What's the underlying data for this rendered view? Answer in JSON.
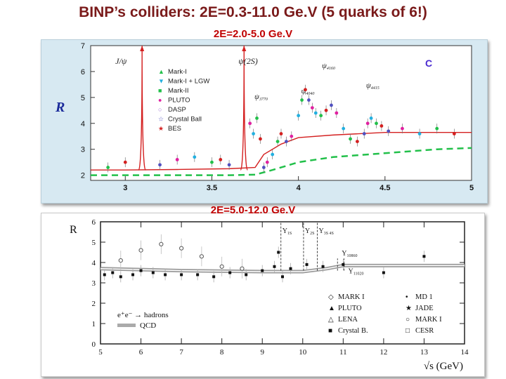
{
  "slide": {
    "title": "BINP’s colliders:  2E=0.3-11.0 Ge.V  (5 quarks of 6!)",
    "subtitle_top": "2E=2.0-5.0 Ge.V",
    "subtitle_bottom": "2E=5.0-12.0 Ge.V"
  },
  "chart_data": [
    {
      "type": "scatter",
      "ylabel": "R",
      "xlim": [
        2.8,
        5.0
      ],
      "ylim": [
        1.8,
        7.0
      ],
      "xticks": [
        3,
        3.5,
        4,
        4.5,
        5
      ],
      "yticks": [
        2,
        3,
        4,
        5,
        6,
        7
      ],
      "corner_label": "C",
      "legend_position": "top-left",
      "legend": [
        "Mark-I",
        "Mark-I + LGW",
        "Mark-II",
        "PLUTO",
        "DASP",
        "Crystal Ball",
        "BES"
      ],
      "annotations": [
        {
          "text": "J/ψ",
          "x": 3.097
        },
        {
          "text": "ψ(2S)",
          "x": 3.686
        },
        {
          "text": "ψ",
          "sub": "3770",
          "x": 3.77
        },
        {
          "text": "ψ",
          "sub": "4040",
          "x": 4.04
        },
        {
          "text": "ψ",
          "sub": "4160",
          "x": 4.16
        },
        {
          "text": "ψ",
          "sub": "4415",
          "x": 4.415
        }
      ],
      "peaks": [
        {
          "x": 3.097,
          "y": 7.0
        },
        {
          "x": 3.686,
          "y": 7.0
        }
      ],
      "continuum_red": [
        [
          2.8,
          2.2
        ],
        [
          3.0,
          2.2
        ],
        [
          3.3,
          2.22
        ],
        [
          3.6,
          2.25
        ],
        [
          3.75,
          2.3
        ],
        [
          3.8,
          2.8
        ],
        [
          3.9,
          3.2
        ],
        [
          4.0,
          3.45
        ],
        [
          4.2,
          3.55
        ],
        [
          4.5,
          3.65
        ],
        [
          5.0,
          3.65
        ]
      ],
      "qcd_green": [
        [
          2.8,
          2.0
        ],
        [
          3.6,
          2.0
        ],
        [
          3.75,
          2.02
        ],
        [
          3.85,
          2.2
        ],
        [
          4.0,
          2.5
        ],
        [
          4.2,
          2.7
        ],
        [
          4.5,
          2.85
        ],
        [
          4.8,
          3.0
        ],
        [
          5.0,
          3.05
        ]
      ],
      "points": [
        [
          2.9,
          2.3
        ],
        [
          3.0,
          2.5
        ],
        [
          3.2,
          2.4
        ],
        [
          3.3,
          2.6
        ],
        [
          3.4,
          2.7
        ],
        [
          3.5,
          2.5
        ],
        [
          3.55,
          2.6
        ],
        [
          3.6,
          2.4
        ],
        [
          3.72,
          4.0
        ],
        [
          3.74,
          3.6
        ],
        [
          3.76,
          4.2
        ],
        [
          3.78,
          3.4
        ],
        [
          3.8,
          2.3
        ],
        [
          3.82,
          2.5
        ],
        [
          3.85,
          2.8
        ],
        [
          3.88,
          3.3
        ],
        [
          3.9,
          3.6
        ],
        [
          3.93,
          3.3
        ],
        [
          3.96,
          3.5
        ],
        [
          4.0,
          4.3
        ],
        [
          4.02,
          4.9
        ],
        [
          4.04,
          5.3
        ],
        [
          4.06,
          4.9
        ],
        [
          4.08,
          4.6
        ],
        [
          4.1,
          4.4
        ],
        [
          4.13,
          4.3
        ],
        [
          4.16,
          4.5
        ],
        [
          4.19,
          4.7
        ],
        [
          4.22,
          4.4
        ],
        [
          4.26,
          3.8
        ],
        [
          4.3,
          3.4
        ],
        [
          4.34,
          3.3
        ],
        [
          4.38,
          3.6
        ],
        [
          4.4,
          4.0
        ],
        [
          4.42,
          4.2
        ],
        [
          4.45,
          4.0
        ],
        [
          4.48,
          3.9
        ],
        [
          4.52,
          3.7
        ],
        [
          4.6,
          3.8
        ],
        [
          4.7,
          3.6
        ],
        [
          4.8,
          3.8
        ],
        [
          4.9,
          3.6
        ]
      ]
    },
    {
      "type": "scatter",
      "ylabel": "R",
      "xlabel": "√s  (GeV)",
      "xlim": [
        5,
        14
      ],
      "ylim": [
        0,
        6
      ],
      "xticks": [
        5,
        6,
        7,
        8,
        9,
        10,
        11,
        12,
        13,
        14
      ],
      "xtick_labels": [
        "5",
        "6",
        "7",
        "8",
        "9",
        "10",
        "11",
        "12",
        "13",
        "14"
      ],
      "yticks": [
        0,
        1,
        2,
        3,
        4,
        5,
        6
      ],
      "resonances": [
        {
          "label": "Υ",
          "sub": "1S",
          "x": 9.46
        },
        {
          "label": "Υ",
          "sub": "2S",
          "x": 10.02
        },
        {
          "label": "Υ",
          "sub": "3S 4S",
          "x": 10.36
        },
        {
          "label": "Υ",
          "sub": "10860",
          "x": 10.86
        },
        {
          "label": "Υ",
          "sub": "11020",
          "x": 11.02
        }
      ],
      "qcd_band": [
        [
          5,
          3.7
        ],
        [
          7,
          3.6
        ],
        [
          9,
          3.55
        ],
        [
          10,
          3.55
        ],
        [
          10.6,
          3.7
        ],
        [
          11,
          3.85
        ],
        [
          14,
          3.85
        ]
      ],
      "legend_position": "bottom-right",
      "legend": [
        "MARK I",
        "MD 1",
        "PLUTO",
        "JADE",
        "LENA",
        "MARK I",
        "Crystal B.",
        "CESR"
      ],
      "inset_legend": [
        "e⁺e⁻ → hadrons",
        "QCD"
      ],
      "points": [
        [
          5.1,
          3.4
        ],
        [
          5.3,
          3.5
        ],
        [
          5.5,
          3.3
        ],
        [
          5.8,
          3.4
        ],
        [
          6.0,
          3.6
        ],
        [
          6.3,
          3.5
        ],
        [
          6.6,
          3.4
        ],
        [
          7.0,
          3.4
        ],
        [
          7.4,
          3.4
        ],
        [
          7.8,
          3.3
        ],
        [
          8.2,
          3.5
        ],
        [
          8.6,
          3.4
        ],
        [
          9.0,
          3.6
        ],
        [
          9.3,
          3.8
        ],
        [
          9.4,
          4.5
        ],
        [
          9.5,
          3.3
        ],
        [
          9.7,
          3.7
        ],
        [
          10.1,
          3.9
        ],
        [
          10.5,
          3.8
        ],
        [
          11.0,
          3.9
        ],
        [
          12.0,
          3.5
        ],
        [
          13.0,
          4.3
        ]
      ],
      "open_points": [
        [
          5.5,
          4.1
        ],
        [
          6.0,
          4.6
        ],
        [
          6.5,
          4.9
        ],
        [
          7.0,
          4.7
        ],
        [
          7.5,
          4.3
        ],
        [
          8.0,
          3.8
        ],
        [
          8.5,
          3.7
        ]
      ]
    }
  ]
}
